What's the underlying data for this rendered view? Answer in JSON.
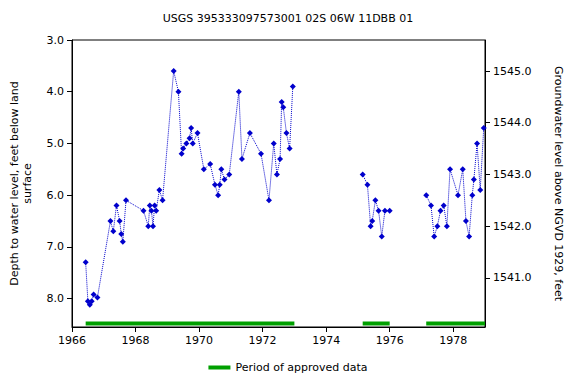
{
  "chart_data": {
    "type": "line",
    "title": "USGS 395333097573001 02S 06W 11DBB 01",
    "y_label": "Depth to water level, feet below land\nsurface",
    "y2_label": "Groundwater level above NGVD 1929, feet",
    "xlim": [
      1966,
      1979
    ],
    "xticks": [
      1966,
      1968,
      1970,
      1972,
      1974,
      1976,
      1978
    ],
    "ylim": [
      8.55,
      3.0
    ],
    "yticks": [
      {
        "value": 3,
        "label": "3.0"
      },
      {
        "value": 4,
        "label": "4.0"
      },
      {
        "value": 5,
        "label": "5.0"
      },
      {
        "value": 6,
        "label": "6.0"
      },
      {
        "value": 7,
        "label": "7.0"
      },
      {
        "value": 8,
        "label": "8.0"
      }
    ],
    "y2lim": [
      1540.05,
      1545.6
    ],
    "y2ticks": [
      {
        "value": 1541,
        "label": "1541.0"
      },
      {
        "value": 1542,
        "label": "1542.0"
      },
      {
        "value": 1543,
        "label": "1543.0"
      },
      {
        "value": 1544,
        "label": "1544.0"
      },
      {
        "value": 1545,
        "label": "1545.0"
      }
    ],
    "grid": false,
    "legend": "bottom",
    "series": [
      {
        "type": "line",
        "color": "#0000cc",
        "marker": "diamond",
        "line_style": "dotted",
        "x": [
          1966.43,
          1966.5,
          1966.56,
          1966.62,
          1966.68,
          1966.8,
          1967.21,
          1967.3,
          1967.4,
          1967.5,
          1967.55,
          1967.6,
          1967.7,
          1968.25,
          1968.4,
          1968.45,
          1968.5,
          1968.55,
          1968.6,
          1968.65,
          1968.75,
          1968.85,
          1969.2,
          1969.35,
          1969.45,
          1969.5,
          1969.6,
          1969.7,
          1969.75,
          1969.8,
          1969.95,
          1970.15,
          1970.35,
          1970.5,
          1970.6,
          1970.65,
          1970.7,
          1970.8,
          1970.95,
          1971.25,
          1971.35,
          1971.6,
          1971.95,
          1972.2,
          1972.35,
          1972.45,
          1972.55,
          1972.6,
          1972.65,
          1972.75,
          1972.85,
          1972.95,
          1974.0,
          1975.15,
          1975.3,
          1975.4,
          1975.45,
          1975.55,
          1975.65,
          1975.75,
          1975.85,
          1976.0,
          1976.6,
          1977.15,
          1977.3,
          1977.4,
          1977.5,
          1977.6,
          1977.7,
          1977.8,
          1977.9,
          1978.15,
          1978.3,
          1978.4,
          1978.5,
          1978.6,
          1978.65,
          1978.75,
          1978.85,
          1978.96
        ],
        "values": [
          7.3,
          8.05,
          8.12,
          8.05,
          7.92,
          7.98,
          6.5,
          6.7,
          6.2,
          6.5,
          6.75,
          6.9,
          6.1,
          6.3,
          6.6,
          6.2,
          6.3,
          6.6,
          6.2,
          6.3,
          5.9,
          6.1,
          3.6,
          4.0,
          5.2,
          5.1,
          5.0,
          4.9,
          4.7,
          5.0,
          4.8,
          5.5,
          5.4,
          5.8,
          6.0,
          5.8,
          5.5,
          5.7,
          5.6,
          4.0,
          5.3,
          4.8,
          5.2,
          6.1,
          5.0,
          5.6,
          5.3,
          4.2,
          4.3,
          4.8,
          5.1,
          3.9,
          null,
          5.6,
          5.8,
          6.6,
          6.5,
          6.1,
          6.3,
          6.8,
          6.3,
          6.3,
          null,
          6.0,
          6.2,
          6.8,
          6.6,
          6.3,
          6.2,
          6.6,
          5.5,
          6.0,
          5.5,
          6.5,
          6.8,
          6.0,
          5.7,
          5.0,
          5.9,
          4.7
        ]
      },
      {
        "name": "Period of approved data",
        "type": "line",
        "color": "#00a000",
        "marker": "none",
        "line_style": "solid",
        "x": [
          1966.43,
          1973.0,
          1974.0,
          1975.15,
          1976.0,
          1976.6,
          1977.15,
          1979.0
        ],
        "values": [
          8.48,
          8.48,
          null,
          8.48,
          8.48,
          null,
          8.48,
          8.48
        ]
      }
    ]
  }
}
